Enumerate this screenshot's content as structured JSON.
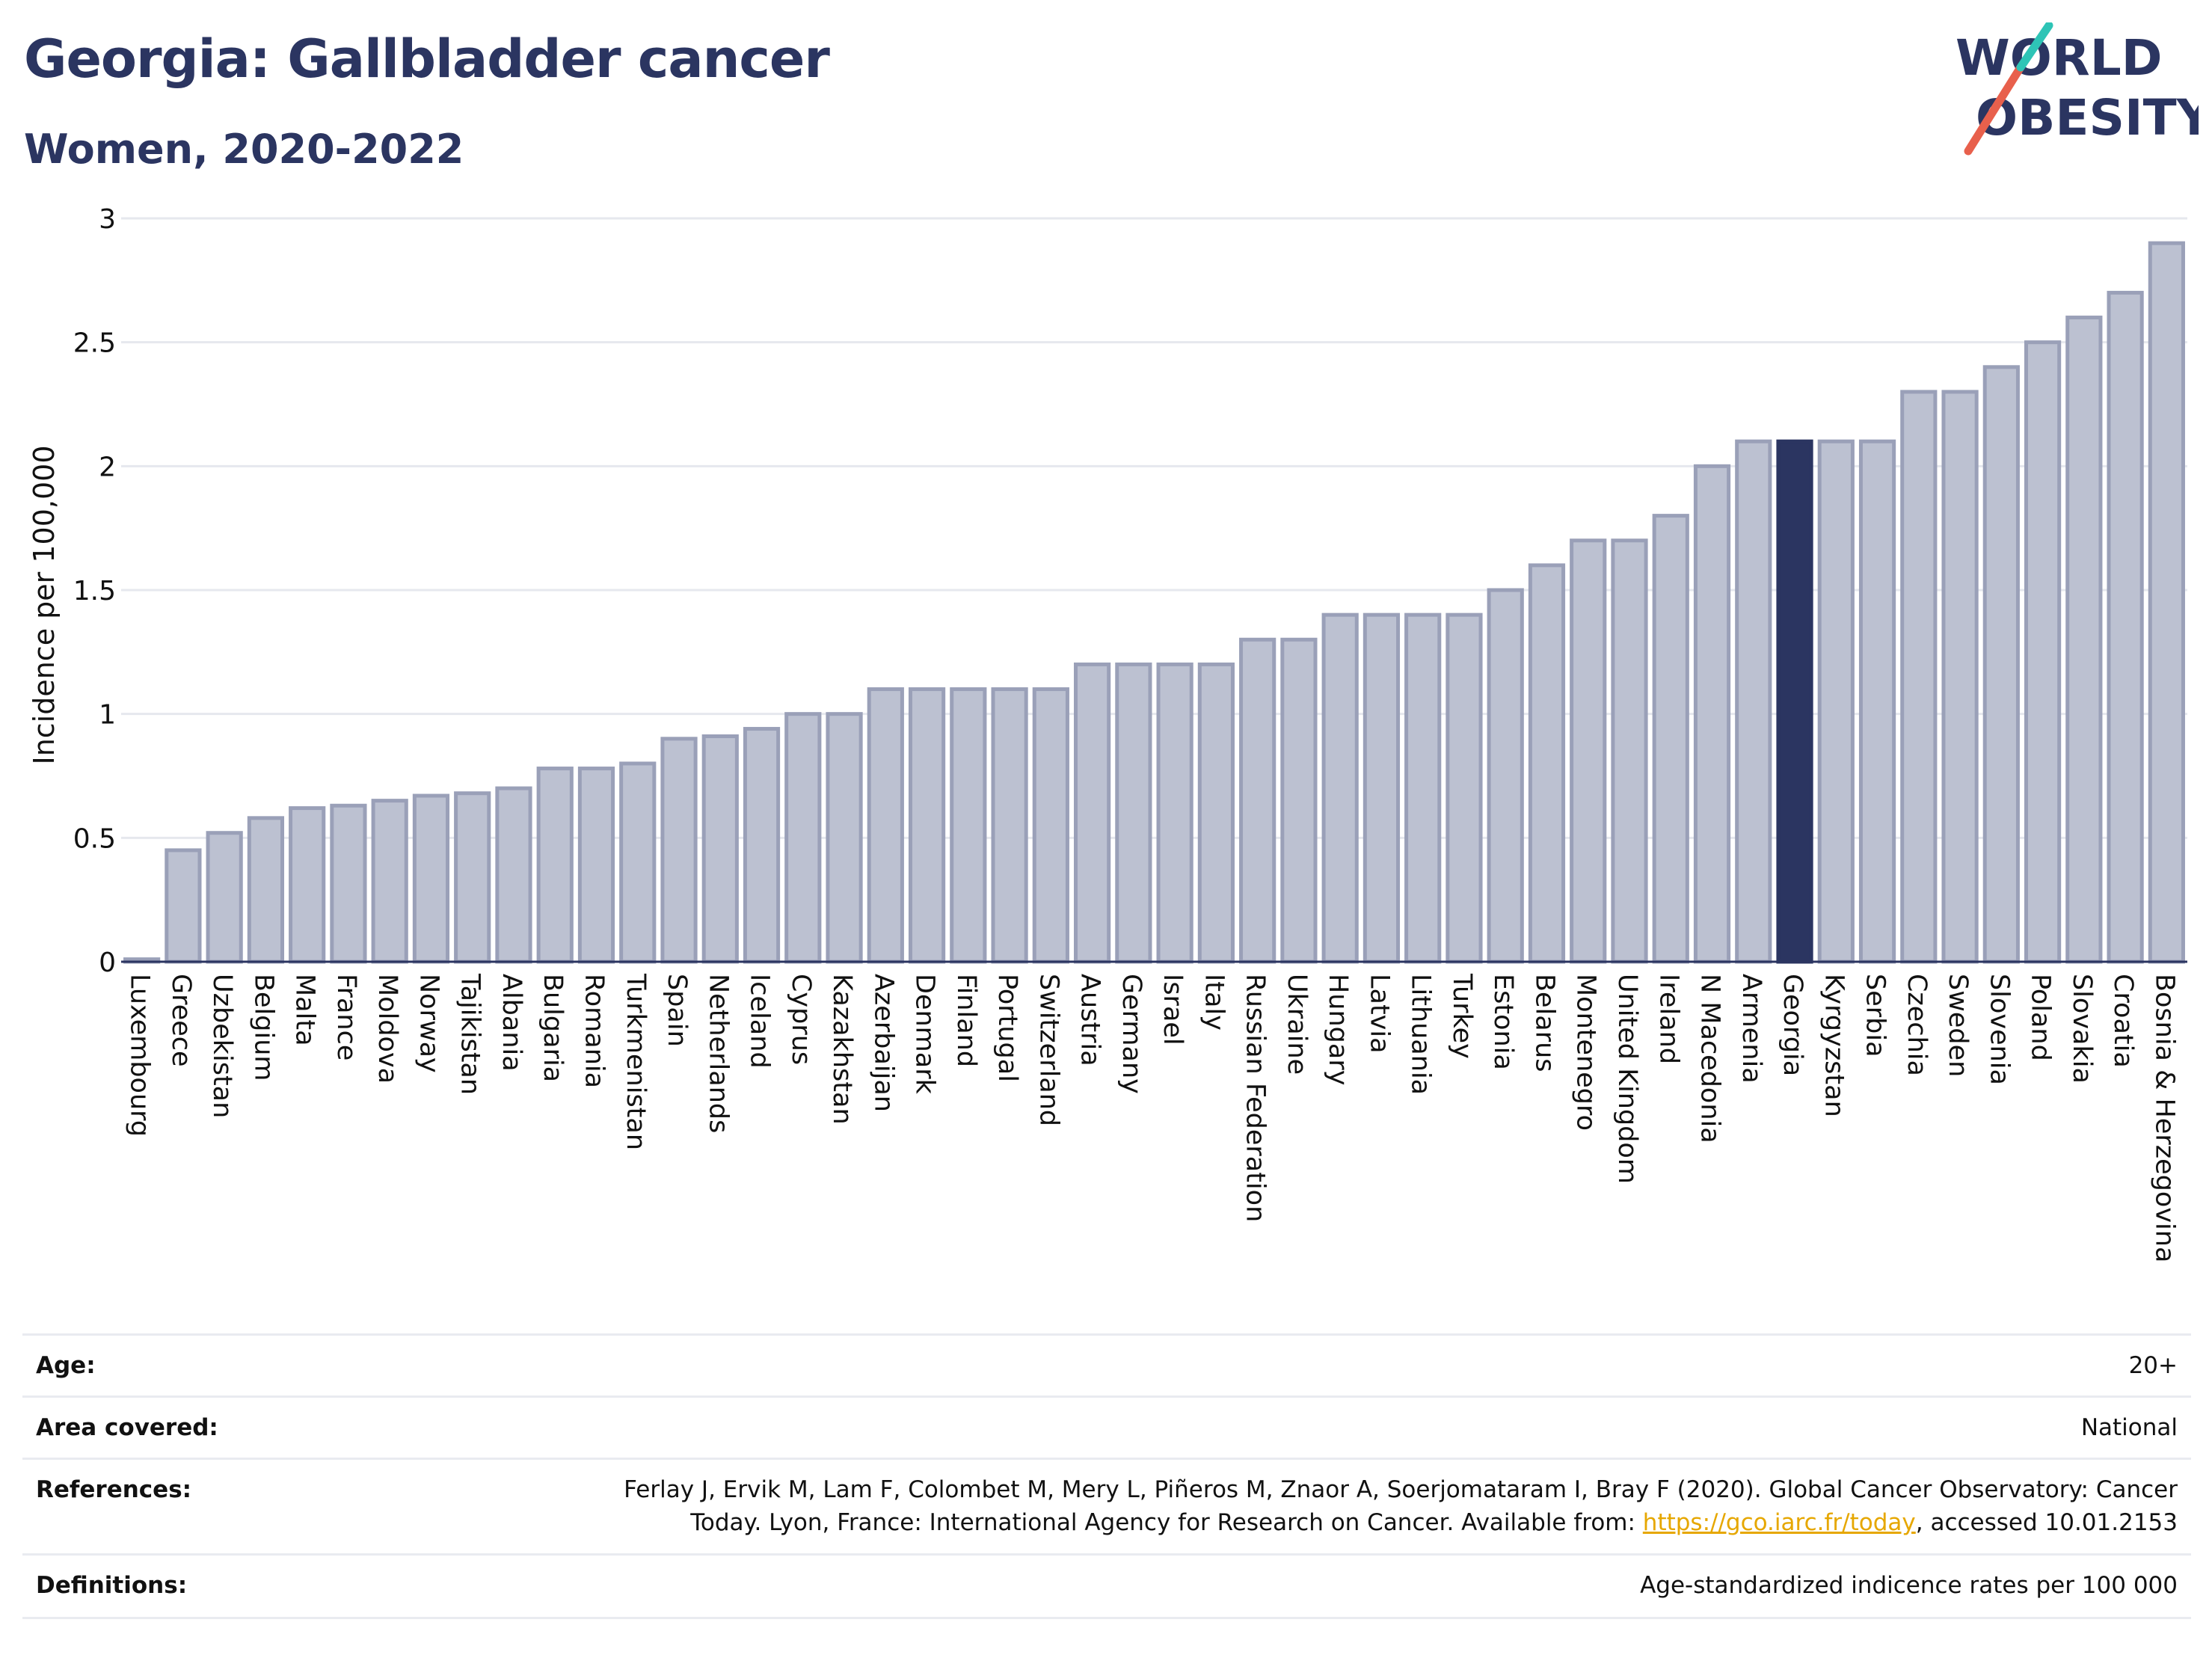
{
  "header": {
    "title": "Georgia: Gallbladder cancer",
    "subtitle": "Women, 2020-2022"
  },
  "logo": {
    "line1": "WORLD",
    "line2": "OBESITY",
    "text_color": "#2b3561",
    "slash_colors": [
      "#e8604c",
      "#2ec4b6"
    ]
  },
  "chart_data": {
    "type": "bar",
    "title": "Georgia: Gallbladder cancer",
    "subtitle": "Women, 2020-2022",
    "ylabel": "Incidence per 100,000",
    "xlabel": "",
    "ylim": [
      0,
      3
    ],
    "yticks": [
      0,
      0.5,
      1,
      1.5,
      2,
      2.5,
      3
    ],
    "ytick_labels": [
      "0",
      "0.5",
      "1",
      "1.5",
      "2",
      "2.5",
      "3"
    ],
    "grid": true,
    "highlight": "Georgia",
    "colors": {
      "bar": "#bcc1d1",
      "bar_edge": "#9aa0b8",
      "highlight": "#2b3561"
    },
    "categories": [
      "Luxembourg",
      "Greece",
      "Uzbekistan",
      "Belgium",
      "Malta",
      "France",
      "Moldova",
      "Norway",
      "Tajikistan",
      "Albania",
      "Bulgaria",
      "Romania",
      "Turkmenistan",
      "Spain",
      "Netherlands",
      "Iceland",
      "Cyprus",
      "Kazakhstan",
      "Azerbaijan",
      "Denmark",
      "Finland",
      "Portugal",
      "Switzerland",
      "Austria",
      "Germany",
      "Israel",
      "Italy",
      "Russian Federation",
      "Ukraine",
      "Hungary",
      "Latvia",
      "Lithuania",
      "Turkey",
      "Estonia",
      "Belarus",
      "Montenegro",
      "United Kingdom",
      "Ireland",
      "N Macedonia",
      "Armenia",
      "Georgia",
      "Kyrgyzstan",
      "Serbia",
      "Czechia",
      "Sweden",
      "Slovenia",
      "Poland",
      "Slovakia",
      "Croatia",
      "Bosnia & Herzegovina"
    ],
    "values": [
      0.01,
      0.45,
      0.52,
      0.58,
      0.62,
      0.63,
      0.65,
      0.67,
      0.68,
      0.7,
      0.78,
      0.78,
      0.8,
      0.9,
      0.91,
      0.94,
      1.0,
      1.0,
      1.1,
      1.1,
      1.1,
      1.1,
      1.1,
      1.2,
      1.2,
      1.2,
      1.2,
      1.3,
      1.3,
      1.4,
      1.4,
      1.4,
      1.4,
      1.5,
      1.6,
      1.7,
      1.7,
      1.8,
      2.0,
      2.1,
      2.1,
      2.1,
      2.1,
      2.3,
      2.3,
      2.4,
      2.5,
      2.6,
      2.7,
      2.9
    ]
  },
  "meta": {
    "age_label": "Age:",
    "age_value": "20+",
    "area_label": "Area covered:",
    "area_value": "National",
    "references_label": "References:",
    "references_line1": "Ferlay J, Ervik M, Lam F, Colombet M, Mery L, Piñeros M, Znaor A, Soerjomataram I, Bray F (2020). Global Cancer Observatory: Cancer",
    "references_line2a": "Today. Lyon, France: International Agency for Research on Cancer. Available from: ",
    "references_link": "https://gco.iarc.fr/today",
    "references_line2b": ", accessed 10.01.2153",
    "definitions_label": "Definitions:",
    "definitions_value": "Age-standardized indicence rates per 100 000"
  }
}
